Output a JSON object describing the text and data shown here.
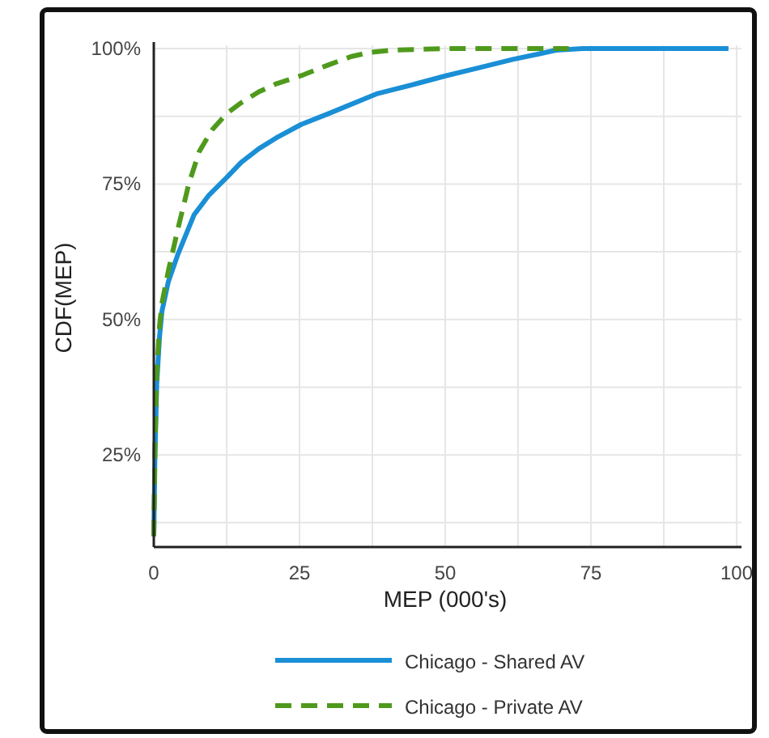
{
  "chart_data": {
    "type": "line",
    "xlabel": "MEP (000's)",
    "ylabel": "CDF(MEP)",
    "xlim": [
      0,
      100
    ],
    "xticks": [
      0,
      {
        "value": 12.5,
        "label": null
      },
      25,
      {
        "value": 37.5,
        "label": null
      },
      50,
      {
        "value": 62.5,
        "label": null
      },
      75,
      {
        "value": 87.5,
        "label": null
      },
      100
    ],
    "ylim": [
      8,
      100
    ],
    "yticks": [
      {
        "value": 12.5,
        "label": null
      },
      {
        "value": 25,
        "label": "25%"
      },
      {
        "value": 37.5,
        "label": null
      },
      {
        "value": 50,
        "label": "50%"
      },
      {
        "value": 62.5,
        "label": null
      },
      {
        "value": 75,
        "label": "75%"
      },
      {
        "value": 87.5,
        "label": null
      },
      {
        "value": 100,
        "label": "100%"
      }
    ],
    "grid": true,
    "legend": "bottom",
    "series": [
      {
        "name": "Chicago - Shared AV",
        "color": "#1a8fd6",
        "line_style": "solid",
        "x": [
          0,
          0.2,
          0.5,
          1,
          1.4,
          2.5,
          4.2,
          6.9,
          9.5,
          12.5,
          15,
          18,
          21,
          25.3,
          30,
          38.4,
          45,
          50.2,
          56,
          61.6,
          66,
          69,
          73.6,
          80,
          90,
          98.6
        ],
        "values": [
          10,
          25,
          38,
          47,
          51.5,
          57,
          62.2,
          69.3,
          73,
          76.2,
          79,
          81.5,
          83.5,
          86,
          88,
          91.7,
          93.5,
          95,
          96.5,
          98,
          99,
          99.7,
          100,
          100,
          100,
          100
        ]
      },
      {
        "name": "Chicago - Private AV",
        "color": "#4f9a1c",
        "line_style": "dashed",
        "x": [
          0,
          0.2,
          0.5,
          1,
          1.4,
          2.5,
          4.2,
          6,
          7.8,
          10,
          12.5,
          15,
          18,
          21,
          25.3,
          30,
          33.8,
          37,
          41.1,
          50,
          60,
          71.2
        ],
        "values": [
          10,
          26,
          40,
          49,
          53,
          59,
          67,
          75,
          81,
          85,
          88,
          90,
          92,
          93.5,
          95,
          97,
          98.5,
          99.3,
          99.7,
          100,
          100,
          100
        ]
      }
    ]
  }
}
